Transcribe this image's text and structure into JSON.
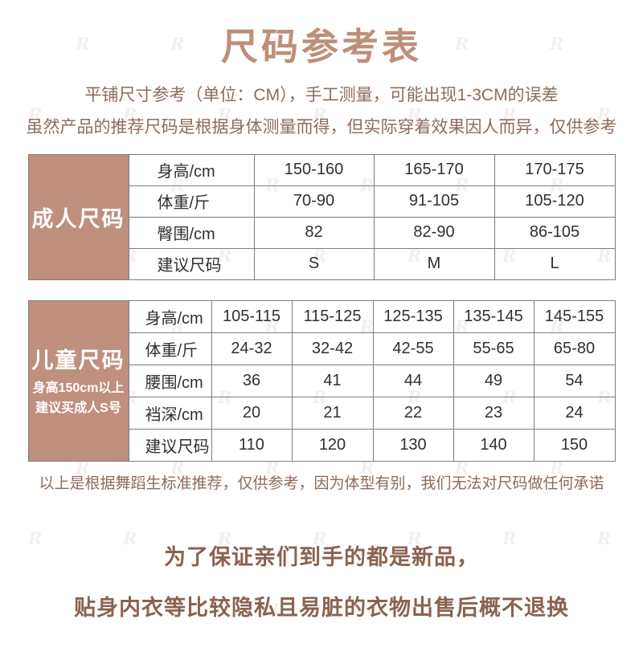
{
  "page": {
    "title": "尺码参考表",
    "subtitle_line1": "平铺尺寸参考（单位：CM），手工测量，可能出现1-3CM的误差",
    "subtitle_line2": "虽然产品的推荐尺码是根据身体测量而得，但实际穿着效果因人而异，仅供参考",
    "note": "以上是根据舞蹈生标准推荐，仅供参考，因为体型有别，我们无法对尺码做任何承诺",
    "footer_line1": "为了保证亲们到手的都是新品，",
    "footer_line2": "贴身内衣等比较隐私且易脏的衣物出售后概不退换"
  },
  "colors": {
    "accent_brown": "#BE907D",
    "title_brown": "#BD8F79",
    "body_text_brown": "#8D6C5C",
    "table_text": "#303030",
    "table_border": "#7E7E7E",
    "group_label_text": "#FFFFFF"
  },
  "watermark": {
    "text": "R",
    "rows": 9,
    "cols": 7
  },
  "adult_table": {
    "group_label": "成人尺码",
    "rows": [
      {
        "label": "身高/cm",
        "values": [
          "150-160",
          "165-170",
          "170-175"
        ]
      },
      {
        "label": "体重/斤",
        "values": [
          "70-90",
          "91-105",
          "105-120"
        ]
      },
      {
        "label": "臀围/cm",
        "values": [
          "82",
          "82-90",
          "86-105"
        ]
      },
      {
        "label": "建议尺码",
        "values": [
          "S",
          "M",
          "L"
        ]
      }
    ]
  },
  "child_table": {
    "group_label": "儿童尺码",
    "group_note_line1": "身高150cm以上",
    "group_note_line2": "建议买成人S号",
    "rows": [
      {
        "label": "身高/cm",
        "values": [
          "105-115",
          "115-125",
          "125-135",
          "135-145",
          "145-155"
        ]
      },
      {
        "label": "体重/斤",
        "values": [
          "24-32",
          "32-42",
          "42-55",
          "55-65",
          "65-80"
        ]
      },
      {
        "label": "腰围/cm",
        "values": [
          "36",
          "41",
          "44",
          "49",
          "54"
        ]
      },
      {
        "label": "裆深/cm",
        "values": [
          "20",
          "21",
          "22",
          "23",
          "24"
        ]
      },
      {
        "label": "建议尺码",
        "values": [
          "110",
          "120",
          "130",
          "140",
          "150"
        ]
      }
    ]
  }
}
